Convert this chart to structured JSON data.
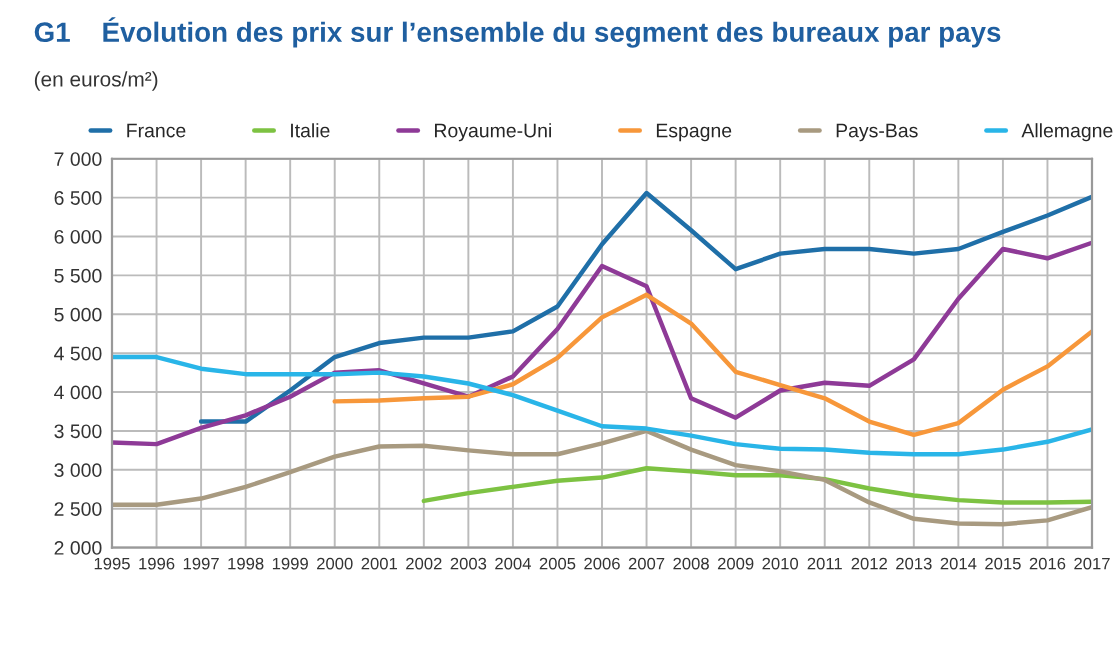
{
  "chart_data": {
    "type": "line",
    "title": "G1    Évolution des prix sur l’ensemble du segment des bureaux par pays",
    "subtitle": "(en euros/m²)",
    "x": [
      1995,
      1996,
      1997,
      1998,
      1999,
      2000,
      2001,
      2002,
      2003,
      2004,
      2005,
      2006,
      2007,
      2008,
      2009,
      2010,
      2011,
      2012,
      2013,
      2014,
      2015,
      2016,
      2017
    ],
    "series": [
      {
        "name": "France",
        "color": "#1f6fa8",
        "values": [
          null,
          null,
          3620,
          3620,
          4020,
          4450,
          4630,
          4700,
          4700,
          4780,
          5100,
          5900,
          6560,
          6080,
          5580,
          5780,
          5840,
          5840,
          5780,
          5840,
          6060,
          6270,
          6510
        ]
      },
      {
        "name": "Italie",
        "color": "#7dc242",
        "values": [
          null,
          null,
          null,
          null,
          null,
          null,
          null,
          2600,
          2700,
          2780,
          2860,
          2900,
          3020,
          2980,
          2930,
          2930,
          2880,
          2760,
          2670,
          2610,
          2580,
          2580,
          2590
        ]
      },
      {
        "name": "Royaume-Uni",
        "color": "#8e3a97",
        "values": [
          3350,
          3330,
          3540,
          3700,
          3940,
          4250,
          4280,
          4110,
          3940,
          4200,
          4810,
          5620,
          5360,
          3920,
          3670,
          4020,
          4120,
          4080,
          4420,
          5200,
          5840,
          5720,
          5920
        ]
      },
      {
        "name": "Espagne",
        "color": "#f7973a",
        "values": [
          null,
          null,
          null,
          null,
          null,
          3880,
          3890,
          3920,
          3940,
          4100,
          4440,
          4960,
          5250,
          4880,
          4260,
          4090,
          3920,
          3620,
          3450,
          3600,
          4030,
          4330,
          4780
        ]
      },
      {
        "name": "Pays-Bas",
        "color": "#a89a80",
        "values": [
          2550,
          2550,
          2630,
          2780,
          2970,
          3170,
          3300,
          3310,
          3250,
          3200,
          3200,
          3340,
          3500,
          3260,
          3060,
          2980,
          2870,
          2580,
          2370,
          2310,
          2300,
          2350,
          2520
        ]
      },
      {
        "name": "Allemagne",
        "color": "#29b5e8",
        "values": [
          4450,
          4450,
          4300,
          4230,
          4230,
          4230,
          4250,
          4200,
          4110,
          3960,
          3760,
          3560,
          3530,
          3440,
          3330,
          3270,
          3260,
          3220,
          3200,
          3200,
          3260,
          3360,
          3520
        ]
      }
    ],
    "xlim": [
      1995,
      2017
    ],
    "xticks": [
      1995,
      1996,
      1997,
      1998,
      1999,
      2000,
      2001,
      2002,
      2003,
      2004,
      2005,
      2006,
      2007,
      2008,
      2009,
      2010,
      2011,
      2012,
      2013,
      2014,
      2015,
      2016,
      2017
    ],
    "ylim": [
      2000,
      7000
    ],
    "yticks": [
      {
        "value": 2000,
        "label": "2 000"
      },
      {
        "value": 2500,
        "label": "2 500"
      },
      {
        "value": 3000,
        "label": "3 000"
      },
      {
        "value": 3500,
        "label": "3 500"
      },
      {
        "value": 4000,
        "label": "4 000"
      },
      {
        "value": 4500,
        "label": "4 500"
      },
      {
        "value": 5000,
        "label": "5 000"
      },
      {
        "value": 5500,
        "label": "5 500"
      },
      {
        "value": 6000,
        "label": "6 000"
      },
      {
        "value": 6500,
        "label": "6 500"
      },
      {
        "value": 7000,
        "label": "7 000"
      }
    ],
    "grid": true,
    "legend": "top",
    "marker": "none",
    "line_style": "solid"
  }
}
